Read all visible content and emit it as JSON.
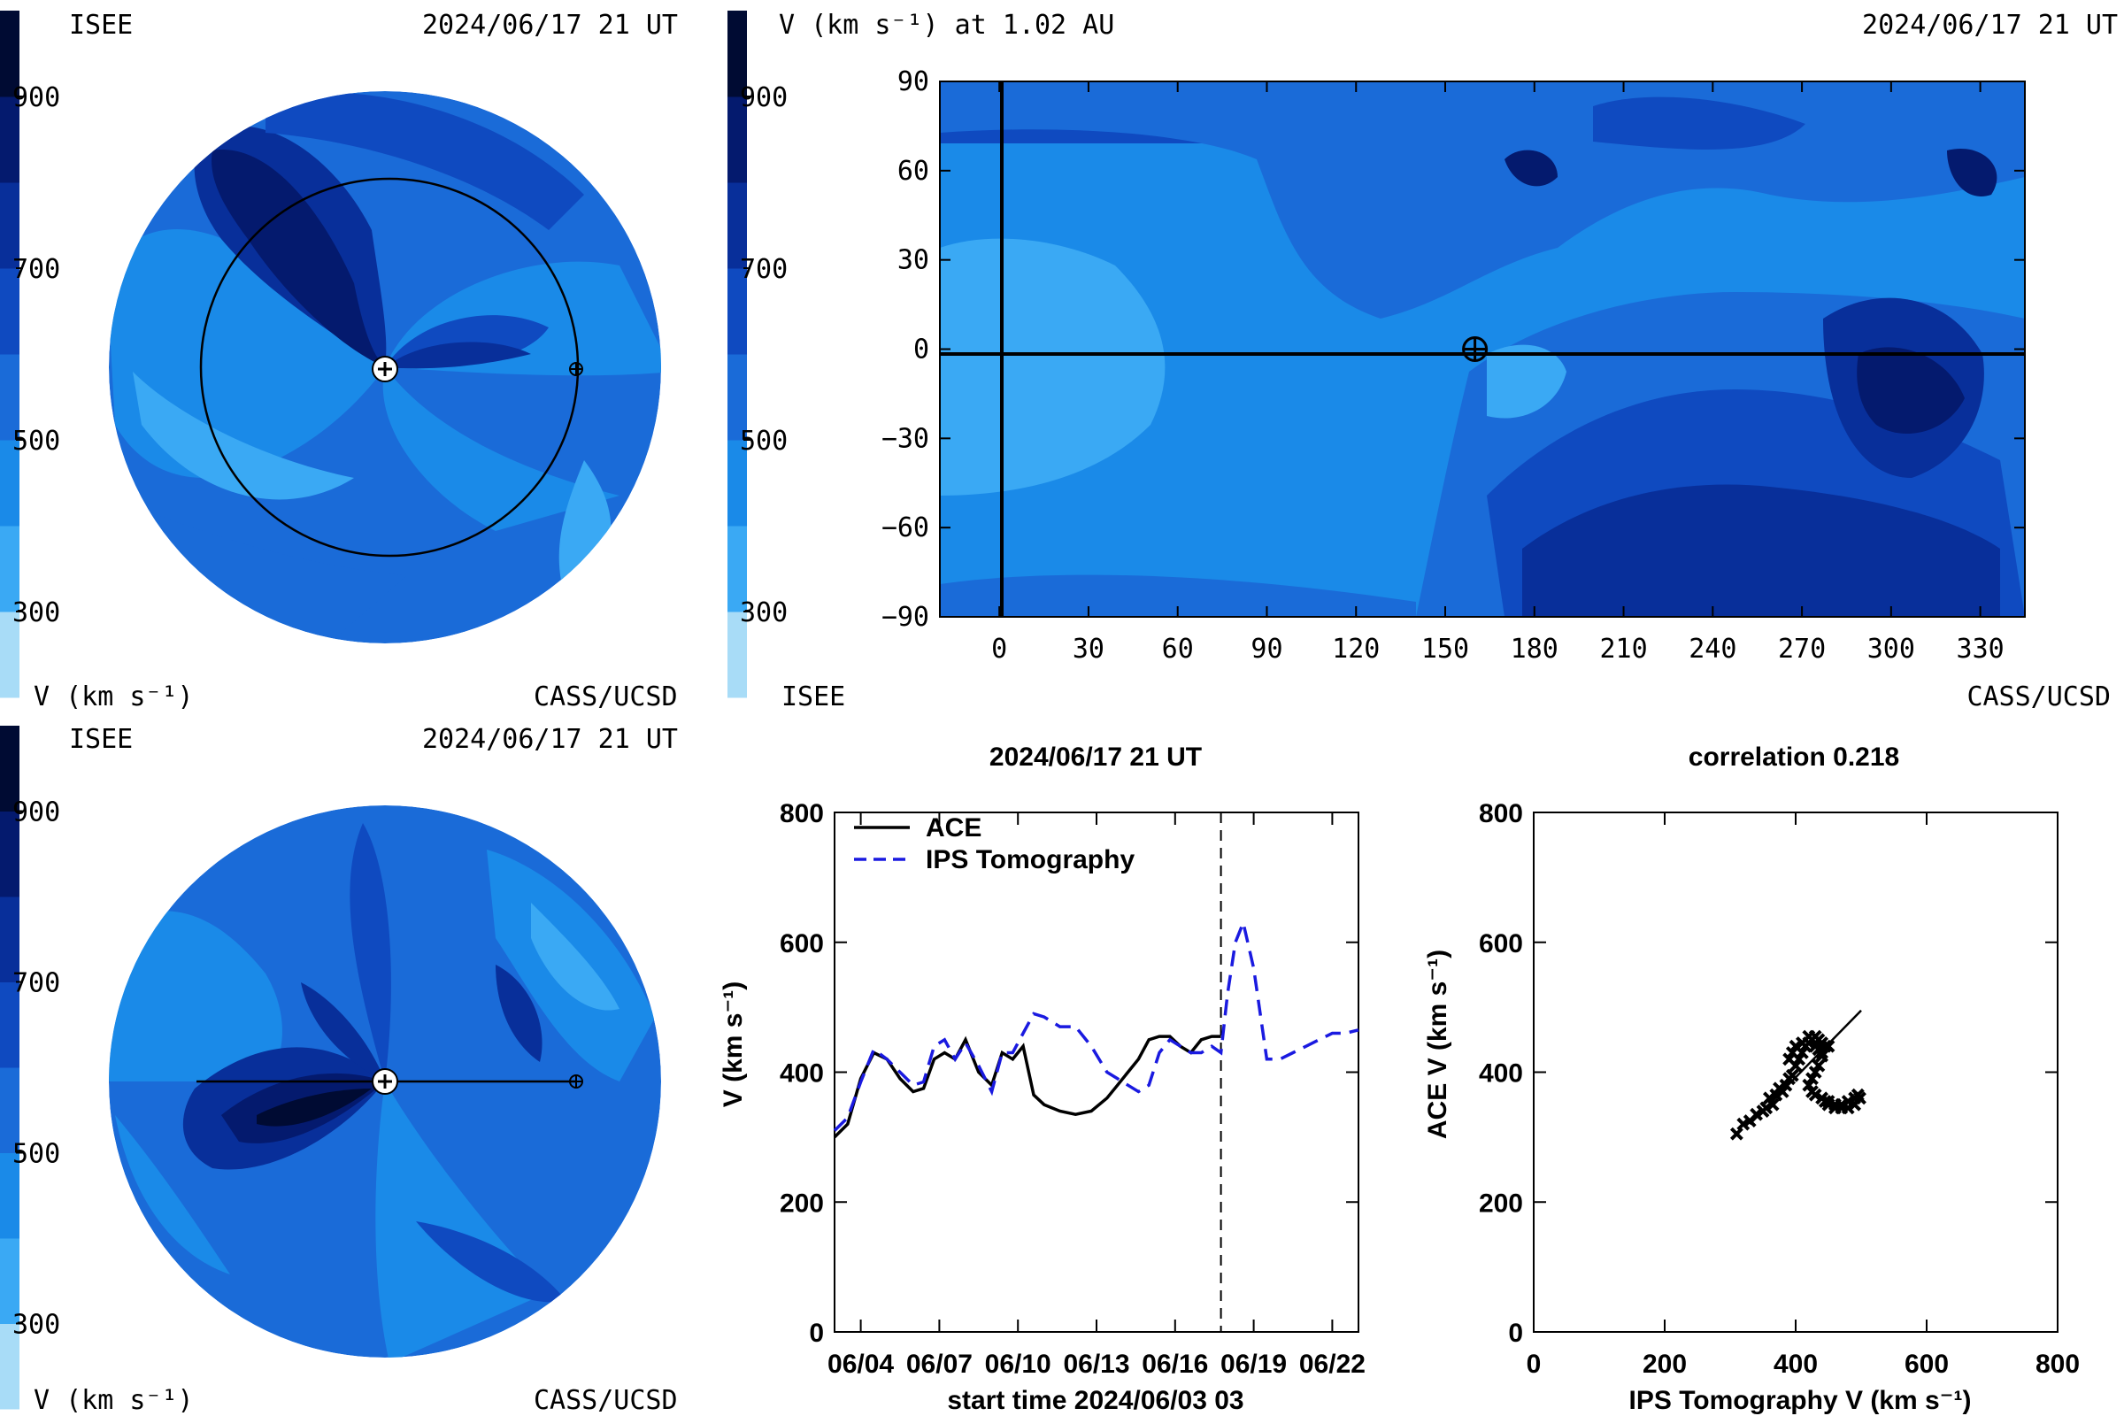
{
  "colors": {
    "bands": [
      "#a8dcf7",
      "#3aa9f4",
      "#1a8ae8",
      "#1a6bd8",
      "#0f4ac0",
      "#082f9a",
      "#041a6e",
      "#000b33"
    ],
    "ips_line": "#1a1ae0",
    "ace_line": "#000000"
  },
  "colorbar": {
    "tick_labels": [
      "900",
      "700",
      "500",
      "300"
    ],
    "units_label": "V (km s⁻¹)"
  },
  "panel_top_left": {
    "org_left": "ISEE",
    "timestamp": "2024/06/17 21 UT",
    "credit": "CASS/UCSD",
    "units_label": "V (km s⁻¹)",
    "icons": [
      "sun-marker-icon",
      "earth-marker-icon"
    ]
  },
  "panel_top_right": {
    "header_label": "V (km s⁻¹) at 1.02 AU",
    "timestamp": "2024/06/17 21 UT",
    "org_bottom_left": "ISEE",
    "credit": "CASS/UCSD",
    "y_ticks": [
      "90",
      "60",
      "30",
      "0",
      "−30",
      "−60",
      "−90"
    ],
    "x_ticks": [
      "0",
      "30",
      "60",
      "90",
      "120",
      "150",
      "180",
      "210",
      "240",
      "270",
      "300",
      "330"
    ],
    "earth_longitude": 160
  },
  "panel_bottom_left": {
    "org_left": "ISEE",
    "timestamp": "2024/06/17 21 UT",
    "credit": "CASS/UCSD",
    "units_label": "V (km s⁻¹)"
  },
  "chart_data": [
    {
      "type": "line",
      "title": "2024/06/17 21 UT",
      "xlabel": "start time 2024/06/03 03",
      "ylabel": "V (km s⁻¹)",
      "x_ticks": [
        "06/04",
        "06/07",
        "06/10",
        "06/13",
        "06/16",
        "06/19",
        "06/22"
      ],
      "y_ticks": [
        "0",
        "200",
        "400",
        "600",
        "800"
      ],
      "xlim": [
        0,
        20
      ],
      "ylim": [
        0,
        800
      ],
      "current_time_marker": 14.75,
      "series": [
        {
          "name": "ACE",
          "style": "solid",
          "x": [
            0,
            0.5,
            1.0,
            1.5,
            2.0,
            2.5,
            3.0,
            3.4,
            3.8,
            4.2,
            4.6,
            5.0,
            5.5,
            6.0,
            6.4,
            6.8,
            7.2,
            7.6,
            8.0,
            8.6,
            9.2,
            9.8,
            10.4,
            10.8,
            11.2,
            11.6,
            12.0,
            12.4,
            12.8,
            13.2,
            13.6,
            14.0,
            14.4,
            14.75
          ],
          "y": [
            300,
            320,
            390,
            430,
            420,
            390,
            370,
            375,
            420,
            430,
            420,
            450,
            400,
            380,
            430,
            420,
            440,
            365,
            350,
            340,
            335,
            340,
            360,
            380,
            400,
            420,
            450,
            455,
            455,
            440,
            430,
            450,
            455,
            455
          ]
        },
        {
          "name": "IPS Tomography",
          "style": "dashed",
          "x": [
            0,
            0.5,
            1.0,
            1.5,
            2.0,
            2.5,
            3.0,
            3.4,
            3.8,
            4.2,
            4.6,
            5.0,
            5.5,
            6.0,
            6.4,
            6.8,
            7.2,
            7.6,
            8.0,
            8.6,
            9.2,
            9.8,
            10.4,
            10.8,
            11.2,
            11.6,
            12.0,
            12.4,
            12.8,
            13.2,
            13.6,
            14.0,
            14.4,
            14.75,
            15.0,
            15.3,
            15.6,
            16.0,
            16.5,
            17.0,
            17.5,
            18.0,
            18.5,
            19.0,
            19.5,
            20.0
          ],
          "y": [
            310,
            330,
            385,
            435,
            420,
            400,
            380,
            385,
            440,
            450,
            420,
            445,
            410,
            370,
            430,
            430,
            460,
            490,
            485,
            470,
            470,
            440,
            400,
            390,
            380,
            370,
            380,
            430,
            450,
            440,
            430,
            430,
            440,
            430,
            520,
            600,
            630,
            560,
            420,
            420,
            430,
            440,
            450,
            460,
            460,
            465
          ]
        }
      ]
    },
    {
      "type": "scatter",
      "title": "correlation 0.218",
      "xlabel": "IPS Tomography V (km s⁻¹)",
      "ylabel": "ACE V (km s⁻¹)",
      "x_ticks": [
        "0",
        "200",
        "400",
        "600",
        "800"
      ],
      "y_ticks": [
        "0",
        "200",
        "400",
        "600",
        "800"
      ],
      "xlim": [
        0,
        800
      ],
      "ylim": [
        0,
        800
      ],
      "points": [
        [
          310,
          305
        ],
        [
          320,
          320
        ],
        [
          330,
          325
        ],
        [
          340,
          335
        ],
        [
          350,
          340
        ],
        [
          355,
          345
        ],
        [
          360,
          360
        ],
        [
          365,
          350
        ],
        [
          370,
          365
        ],
        [
          375,
          375
        ],
        [
          380,
          370
        ],
        [
          385,
          380
        ],
        [
          390,
          390
        ],
        [
          395,
          395
        ],
        [
          400,
          410
        ],
        [
          405,
          420
        ],
        [
          410,
          430
        ],
        [
          415,
          440
        ],
        [
          420,
          445
        ],
        [
          425,
          450
        ],
        [
          430,
          455
        ],
        [
          435,
          450
        ],
        [
          440,
          445
        ],
        [
          445,
          440
        ],
        [
          440,
          425
        ],
        [
          435,
          410
        ],
        [
          430,
          400
        ],
        [
          425,
          390
        ],
        [
          420,
          380
        ],
        [
          425,
          370
        ],
        [
          430,
          365
        ],
        [
          440,
          360
        ],
        [
          450,
          355
        ],
        [
          460,
          350
        ],
        [
          470,
          350
        ],
        [
          480,
          355
        ],
        [
          490,
          360
        ],
        [
          495,
          365
        ],
        [
          498,
          360
        ],
        [
          490,
          350
        ],
        [
          480,
          345
        ],
        [
          470,
          345
        ],
        [
          460,
          345
        ],
        [
          450,
          350
        ],
        [
          445,
          355
        ],
        [
          400,
          440
        ],
        [
          395,
          430
        ],
        [
          390,
          420
        ],
        [
          410,
          445
        ],
        [
          420,
          455
        ],
        [
          430,
          440
        ],
        [
          440,
          430
        ],
        [
          450,
          440
        ],
        [
          435,
          435
        ]
      ],
      "fit_line": [
        [
          330,
          320
        ],
        [
          500,
          495
        ]
      ]
    }
  ]
}
